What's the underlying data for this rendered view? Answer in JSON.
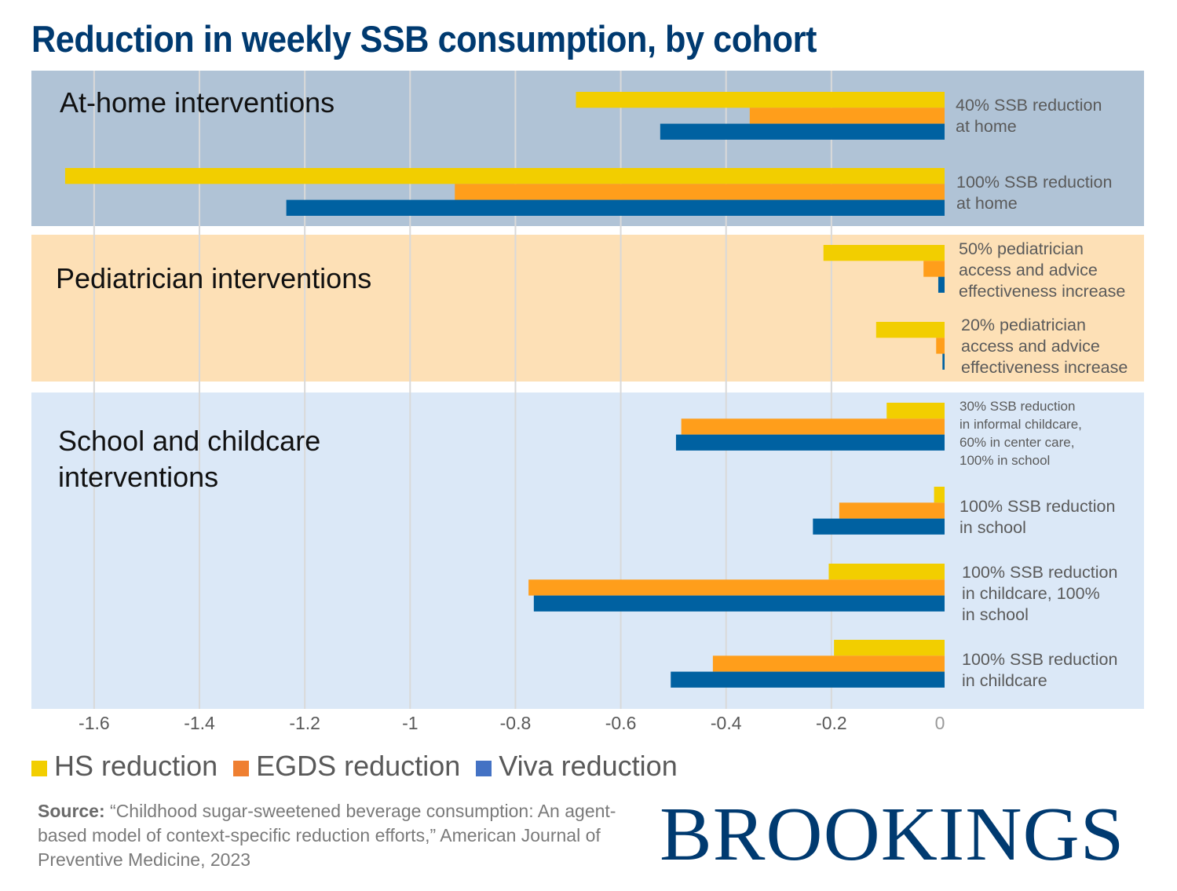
{
  "title": "Reduction in weekly SSB consumption, by cohort",
  "colors": {
    "hs": "#f2ce00",
    "egds": "#ff9e1b",
    "viva": "#0061a1",
    "legend_hs": "#f2ce00",
    "legend_egds": "#ef7f31",
    "legend_viva": "#4472c4",
    "title": "#003a70",
    "panel_home": "#b0c3d6",
    "panel_pediatrician": "#fde0b6",
    "panel_school": "#dbe8f7",
    "grid": "#d9d9d9"
  },
  "legend": [
    {
      "key": "hs",
      "label": "HS reduction"
    },
    {
      "key": "egds",
      "label": "EGDS reduction"
    },
    {
      "key": "viva",
      "label": "Viva reduction"
    }
  ],
  "source": {
    "prefix": "Source:",
    "text": "“Childhood sugar-sweetened beverage consumption: An agent-based model of context-specific reduction efforts,” American Journal of Preventive Medicine, 2023"
  },
  "logo": "BROOKINGS",
  "chart_data": {
    "type": "bar",
    "orientation": "horizontal",
    "title": "Reduction in weekly SSB consumption, by cohort",
    "xlabel": "",
    "ylabel": "",
    "xlim": [
      -1.7,
      0
    ],
    "x_ticks": [
      -1.6,
      -1.4,
      -1.2,
      -1,
      -0.8,
      -0.6,
      -0.4,
      -0.2,
      0
    ],
    "x_tick_labels": [
      "-1.6",
      "-1.4",
      "-1.2",
      "-1",
      "-0.8",
      "-0.6",
      "-0.4",
      "-0.2",
      "0"
    ],
    "grid": true,
    "legend_position": "bottom-left",
    "series_names": [
      "HS reduction",
      "EGDS reduction",
      "Viva reduction"
    ],
    "groups": [
      {
        "name": "At-home interventions",
        "categories": [
          {
            "label": "40% SSB reduction\nat home",
            "values": {
              "hs": -0.7,
              "egds": -0.37,
              "viva": -0.54
            }
          },
          {
            "label": "100% SSB reduction\nat home",
            "values": {
              "hs": -1.67,
              "egds": -0.93,
              "viva": -1.25
            }
          }
        ]
      },
      {
        "name": "Pediatrician interventions",
        "categories": [
          {
            "label": "50% pediatrician\naccess and advice\neffectiveness increase",
            "values": {
              "hs": -0.23,
              "egds": -0.04,
              "viva": -0.012
            }
          },
          {
            "label": "20% pediatrician\naccess and advice\neffectiveness increase",
            "values": {
              "hs": -0.13,
              "egds": -0.016,
              "viva": -0.004
            }
          }
        ]
      },
      {
        "name": "School and childcare\ninterventions",
        "categories": [
          {
            "label": "30% SSB reduction\nin informal childcare,\n60% in center care,\n100% in school",
            "values": {
              "hs": -0.11,
              "egds": -0.5,
              "viva": -0.51
            }
          },
          {
            "label": "100% SSB reduction\nin school",
            "values": {
              "hs": -0.02,
              "egds": -0.2,
              "viva": -0.25
            }
          },
          {
            "label": "100% SSB reduction\nin childcare, 100%\nin school",
            "values": {
              "hs": -0.22,
              "egds": -0.79,
              "viva": -0.78
            }
          },
          {
            "label": "100% SSB reduction\nin childcare",
            "values": {
              "hs": -0.21,
              "egds": -0.44,
              "viva": -0.52
            }
          }
        ]
      }
    ]
  }
}
